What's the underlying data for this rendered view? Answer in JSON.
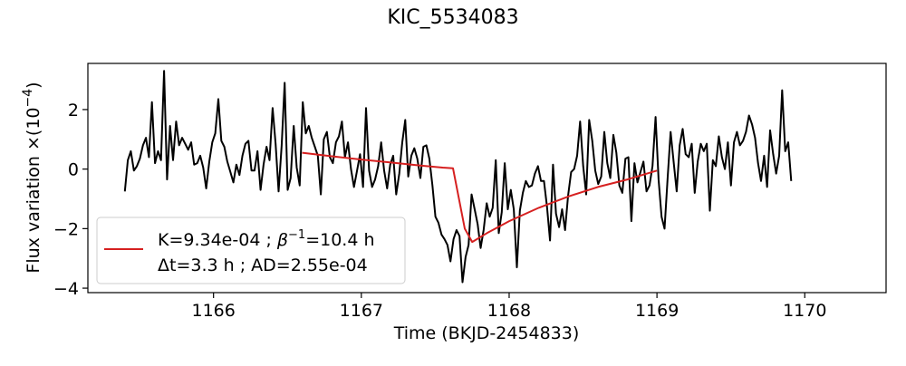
{
  "chart_data": {
    "type": "line",
    "title": "KIC_5534083",
    "xlabel": "Time (BKJD-2454833)",
    "ylabel_text": "Flux variation ×(10",
    "ylabel_sup": "−4",
    "ylabel_close": ")",
    "xlim": [
      1165.15,
      1170.55
    ],
    "ylim": [
      -4.15,
      3.55
    ],
    "xticks": [
      1166,
      1167,
      1168,
      1169,
      1170
    ],
    "yticks": [
      -4,
      -2,
      0,
      2
    ],
    "grid": false,
    "legend": {
      "placement": "lower-left",
      "line1_a": "K=9.34e-04 ; ",
      "line1_beta": "β",
      "line1_sup": "−1",
      "line1_b": "=10.4 h",
      "line2": "Δt=3.3 h ; AD=2.55e-04",
      "swatch_color": "#d62020"
    },
    "colors": {
      "data": "#000000",
      "fit": "#d62020"
    },
    "series": [
      {
        "role": "data",
        "x_start": 1165.4,
        "x_step": 0.0204,
        "y": [
          -0.75,
          0.3,
          0.6,
          -0.05,
          0.1,
          0.35,
          0.8,
          1.05,
          0.4,
          2.25,
          0.2,
          0.6,
          0.3,
          3.3,
          -0.35,
          1.45,
          0.3,
          1.6,
          0.8,
          1.05,
          0.85,
          0.65,
          0.9,
          0.15,
          0.2,
          0.45,
          0.05,
          -0.65,
          0.25,
          0.9,
          1.2,
          2.35,
          0.95,
          0.75,
          0.25,
          -0.1,
          -0.45,
          0.15,
          -0.2,
          0.45,
          0.85,
          0.95,
          -0.05,
          -0.05,
          0.6,
          -0.7,
          0.15,
          0.75,
          0.3,
          2.05,
          0.85,
          -0.75,
          0.8,
          2.9,
          -0.7,
          -0.3,
          1.45,
          0.05,
          -0.55,
          2.25,
          1.2,
          1.45,
          1.05,
          0.75,
          0.45,
          -0.85,
          1.0,
          1.25,
          0.4,
          0.2,
          0.9,
          1.1,
          1.6,
          0.4,
          0.9,
          0.0,
          -0.6,
          -0.05,
          0.5,
          -0.6,
          2.05,
          -0.05,
          -0.6,
          -0.35,
          0.1,
          0.9,
          -0.05,
          -0.65,
          0.15,
          0.45,
          -0.85,
          -0.15,
          0.9,
          1.65,
          -0.25,
          0.45,
          0.7,
          0.35,
          -0.3,
          0.75,
          0.8,
          0.35,
          -0.55,
          -1.6,
          -1.8,
          -2.2,
          -2.35,
          -2.55,
          -3.1,
          -2.35,
          -2.05,
          -2.25,
          -3.8,
          -2.95,
          -2.55,
          -0.85,
          -1.35,
          -1.85,
          -2.65,
          -2.05,
          -1.15,
          -1.6,
          -1.3,
          0.3,
          -2.15,
          -1.45,
          0.2,
          -1.35,
          -0.7,
          -1.35,
          -3.3,
          -1.4,
          -0.8,
          -0.4,
          -0.6,
          -0.55,
          -0.15,
          0.1,
          -0.4,
          -0.4,
          -1.25,
          -2.4,
          0.15,
          -1.5,
          -1.95,
          -1.35,
          -2.05,
          -0.9,
          -0.1,
          0.0,
          0.45,
          1.6,
          0.1,
          -0.85,
          1.65,
          0.95,
          -0.05,
          -0.5,
          -0.25,
          1.25,
          0.2,
          -0.3,
          1.15,
          0.55,
          -0.55,
          -0.8,
          0.35,
          0.4,
          -1.75,
          0.2,
          -0.45,
          -0.1,
          0.25,
          -0.75,
          -0.55,
          0.1,
          1.75,
          -0.35,
          -1.6,
          -2.0,
          -0.3,
          1.25,
          0.25,
          -0.75,
          0.8,
          1.35,
          0.5,
          0.4,
          0.85,
          -0.8,
          0.25,
          0.85,
          0.6,
          0.85,
          -1.4,
          0.3,
          0.1,
          1.1,
          0.4,
          0.0,
          0.9,
          -0.55,
          0.9,
          1.25,
          0.8,
          0.95,
          1.25,
          1.8,
          1.5,
          1.05,
          0.2,
          -0.4,
          0.45,
          -0.6,
          1.3,
          0.5,
          -0.15,
          0.45,
          2.65,
          0.6,
          0.9,
          -0.4
        ]
      },
      {
        "role": "fit",
        "x": [
          1166.6,
          1166.8,
          1167.0,
          1167.2,
          1167.4,
          1167.55,
          1167.62,
          1167.7,
          1167.75,
          1167.85,
          1168.0,
          1168.2,
          1168.4,
          1168.6,
          1168.8,
          1169.0
        ],
        "y": [
          0.55,
          0.43,
          0.32,
          0.22,
          0.12,
          0.05,
          0.03,
          -2.0,
          -2.45,
          -2.15,
          -1.75,
          -1.3,
          -0.92,
          -0.6,
          -0.35,
          -0.05
        ]
      }
    ]
  }
}
